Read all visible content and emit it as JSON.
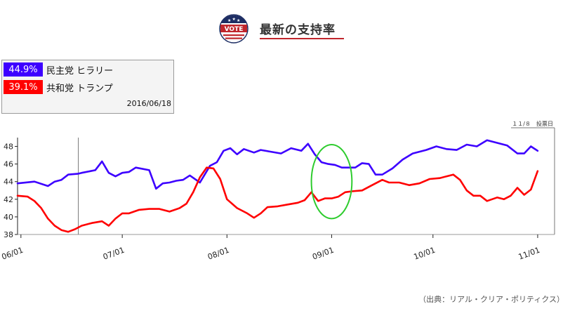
{
  "header": {
    "badge_text": "VOTE",
    "title": "最新の支持率"
  },
  "legend": {
    "items": [
      {
        "value": "44.9%",
        "label": "民主党 ヒラリー",
        "color": "#3d00ff"
      },
      {
        "value": "39.1%",
        "label": "共和党 トランプ",
        "color": "#ff0000"
      }
    ],
    "date": "2016/06/18"
  },
  "election_marker": "１１/８　投票日",
  "source": "（出典：リアル・クリア・ポリティクス）",
  "colors": {
    "clinton": "#3d00ff",
    "trump": "#ff0000",
    "highlight": "#2ecc2e",
    "accent": "#c0262c"
  },
  "chart_data": {
    "type": "line",
    "x_type": "date",
    "xlim": [
      "2016-05-31",
      "2016-11-06"
    ],
    "ylim": [
      38,
      49
    ],
    "y_ticks": [
      38,
      40,
      42,
      44,
      46,
      48
    ],
    "x_ticks": [
      "06/01",
      "07/01",
      "08/01",
      "09/01",
      "10/01",
      "11/01"
    ],
    "markers": [
      {
        "type": "vline",
        "x": "2016-06-18"
      },
      {
        "type": "ellipse",
        "x_center": "2016-09-01",
        "y_center": 44,
        "x_radius_days": 6,
        "y_radius": 4.2
      }
    ],
    "series": [
      {
        "key": "clinton",
        "x": [
          "2016-05-31",
          "2016-06-05",
          "2016-06-09",
          "2016-06-11",
          "2016-06-13",
          "2016-06-15",
          "2016-06-18",
          "2016-06-19",
          "2016-06-23",
          "2016-06-25",
          "2016-06-27",
          "2016-06-29",
          "2016-07-01",
          "2016-07-03",
          "2016-07-05",
          "2016-07-09",
          "2016-07-11",
          "2016-07-13",
          "2016-07-15",
          "2016-07-17",
          "2016-07-19",
          "2016-07-21",
          "2016-07-24",
          "2016-07-27",
          "2016-07-29",
          "2016-07-31",
          "2016-08-02",
          "2016-08-04",
          "2016-08-06",
          "2016-08-09",
          "2016-08-11",
          "2016-08-14",
          "2016-08-17",
          "2016-08-20",
          "2016-08-23",
          "2016-08-25",
          "2016-08-27",
          "2016-08-29",
          "2016-08-31",
          "2016-09-02",
          "2016-09-04",
          "2016-09-06",
          "2016-09-08",
          "2016-09-10",
          "2016-09-12",
          "2016-09-14",
          "2016-09-16",
          "2016-09-19",
          "2016-09-22",
          "2016-09-25",
          "2016-09-29",
          "2016-10-02",
          "2016-10-05",
          "2016-10-08",
          "2016-10-11",
          "2016-10-14",
          "2016-10-17",
          "2016-10-20",
          "2016-10-23",
          "2016-10-26",
          "2016-10-28",
          "2016-10-30",
          "2016-11-01"
        ],
        "values": [
          43.8,
          44.0,
          43.5,
          44.0,
          44.2,
          44.8,
          44.9,
          45.0,
          45.3,
          46.3,
          45.0,
          44.6,
          45.0,
          45.1,
          45.6,
          45.3,
          43.2,
          43.8,
          43.9,
          44.1,
          44.2,
          44.7,
          43.9,
          45.8,
          46.2,
          47.5,
          47.8,
          47.1,
          47.7,
          47.3,
          47.6,
          47.4,
          47.2,
          47.8,
          47.5,
          48.3,
          47.1,
          46.2,
          46.0,
          45.9,
          45.6,
          45.6,
          45.6,
          46.1,
          46.0,
          44.8,
          44.8,
          45.5,
          46.5,
          47.2,
          47.6,
          48.0,
          47.7,
          47.6,
          48.2,
          48.0,
          48.7,
          48.4,
          48.1,
          47.2,
          47.2,
          48.0,
          47.5
        ]
      },
      {
        "key": "trump",
        "x": [
          "2016-05-31",
          "2016-06-03",
          "2016-06-05",
          "2016-06-07",
          "2016-06-09",
          "2016-06-11",
          "2016-06-13",
          "2016-06-15",
          "2016-06-17",
          "2016-06-19",
          "2016-06-22",
          "2016-06-25",
          "2016-06-27",
          "2016-06-29",
          "2016-07-01",
          "2016-07-03",
          "2016-07-06",
          "2016-07-09",
          "2016-07-12",
          "2016-07-15",
          "2016-07-18",
          "2016-07-20",
          "2016-07-22",
          "2016-07-24",
          "2016-07-26",
          "2016-07-28",
          "2016-07-30",
          "2016-08-01",
          "2016-08-04",
          "2016-08-07",
          "2016-08-09",
          "2016-08-11",
          "2016-08-13",
          "2016-08-16",
          "2016-08-19",
          "2016-08-22",
          "2016-08-24",
          "2016-08-26",
          "2016-08-28",
          "2016-08-30",
          "2016-09-01",
          "2016-09-03",
          "2016-09-05",
          "2016-09-07",
          "2016-09-10",
          "2016-09-13",
          "2016-09-16",
          "2016-09-18",
          "2016-09-21",
          "2016-09-24",
          "2016-09-27",
          "2016-09-30",
          "2016-10-03",
          "2016-10-05",
          "2016-10-07",
          "2016-10-09",
          "2016-10-11",
          "2016-10-13",
          "2016-10-15",
          "2016-10-17",
          "2016-10-20",
          "2016-10-22",
          "2016-10-24",
          "2016-10-26",
          "2016-10-28",
          "2016-10-30",
          "2016-11-01"
        ],
        "values": [
          42.4,
          42.3,
          41.8,
          41.0,
          39.8,
          39.0,
          38.5,
          38.3,
          38.6,
          39.0,
          39.3,
          39.5,
          39.0,
          39.8,
          40.4,
          40.4,
          40.8,
          40.9,
          40.9,
          40.6,
          41.0,
          41.5,
          42.8,
          44.5,
          45.6,
          45.5,
          44.3,
          42.0,
          41.0,
          40.4,
          39.9,
          40.4,
          41.1,
          41.2,
          41.4,
          41.6,
          41.9,
          42.8,
          41.8,
          42.1,
          42.1,
          42.3,
          42.8,
          42.9,
          43.0,
          43.6,
          44.2,
          43.9,
          43.9,
          43.6,
          43.8,
          44.3,
          44.4,
          44.6,
          44.8,
          44.2,
          43.0,
          42.4,
          42.4,
          41.8,
          42.2,
          42.0,
          42.4,
          43.3,
          42.5,
          43.1,
          45.2
        ]
      }
    ]
  }
}
